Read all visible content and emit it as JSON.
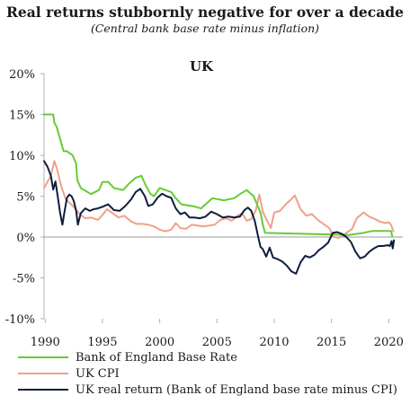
{
  "title": "Real returns stubbornly negative for over a decade",
  "subtitle": "(Central bank base rate minus inflation)",
  "chart_data": {
    "type": "line",
    "panel_title": "UK",
    "x_ticks": [
      "1990",
      "1995",
      "2000",
      "2005",
      "2010",
      "2015",
      "2020"
    ],
    "y_ticks": [
      "20%",
      "15%",
      "10%",
      "5%",
      "0%",
      "-5%",
      "-10%"
    ],
    "xlim": [
      1989.9,
      2020.6
    ],
    "ylim": [
      -10,
      20
    ],
    "grid": false,
    "legend_position": "bottom-left",
    "series": [
      {
        "name": "Bank of England Base Rate",
        "color": "#66cc33",
        "points": [
          [
            1989.9,
            15
          ],
          [
            1990.7,
            15
          ],
          [
            1990.8,
            14
          ],
          [
            1991.0,
            13.5
          ],
          [
            1991.2,
            12.5
          ],
          [
            1991.4,
            11.5
          ],
          [
            1991.6,
            10.5
          ],
          [
            1991.9,
            10.5
          ],
          [
            1992.4,
            10
          ],
          [
            1992.7,
            9
          ],
          [
            1992.8,
            7
          ],
          [
            1993.1,
            6
          ],
          [
            1994.0,
            5.25
          ],
          [
            1994.7,
            5.75
          ],
          [
            1995.0,
            6.75
          ],
          [
            1995.5,
            6.75
          ],
          [
            1996.0,
            6
          ],
          [
            1996.8,
            5.75
          ],
          [
            1997.3,
            6.5
          ],
          [
            1997.9,
            7.25
          ],
          [
            1998.4,
            7.5
          ],
          [
            1998.8,
            6.25
          ],
          [
            1999.2,
            5.25
          ],
          [
            1999.5,
            5
          ],
          [
            2000.0,
            6
          ],
          [
            2001.0,
            5.5
          ],
          [
            2001.4,
            4.75
          ],
          [
            2001.9,
            4
          ],
          [
            2003.0,
            3.75
          ],
          [
            2003.6,
            3.5
          ],
          [
            2004.0,
            4
          ],
          [
            2004.6,
            4.75
          ],
          [
            2005.6,
            4.5
          ],
          [
            2006.5,
            4.75
          ],
          [
            2007.0,
            5.25
          ],
          [
            2007.6,
            5.75
          ],
          [
            2008.2,
            5
          ],
          [
            2008.8,
            3
          ],
          [
            2009.0,
            1.5
          ],
          [
            2009.2,
            0.5
          ],
          [
            2016.5,
            0.25
          ],
          [
            2017.8,
            0.5
          ],
          [
            2018.6,
            0.75
          ],
          [
            2020.2,
            0.75
          ],
          [
            2020.3,
            0.1
          ]
        ]
      },
      {
        "name": "UK CPI",
        "color": "#f0a08a",
        "points": [
          [
            1989.9,
            6
          ],
          [
            1990.5,
            7.5
          ],
          [
            1990.8,
            9.3
          ],
          [
            1991.0,
            8.5
          ],
          [
            1991.4,
            6.2
          ],
          [
            1991.8,
            4.6
          ],
          [
            1992.2,
            4.1
          ],
          [
            1992.6,
            3.5
          ],
          [
            1993.0,
            2.8
          ],
          [
            1993.5,
            2.3
          ],
          [
            1994.0,
            2.4
          ],
          [
            1994.6,
            2.1
          ],
          [
            1995.0,
            2.7
          ],
          [
            1995.4,
            3.4
          ],
          [
            1995.9,
            2.9
          ],
          [
            1996.4,
            2.4
          ],
          [
            1996.9,
            2.6
          ],
          [
            1997.5,
            1.9
          ],
          [
            1998.0,
            1.6
          ],
          [
            1998.5,
            1.6
          ],
          [
            1999.0,
            1.5
          ],
          [
            1999.5,
            1.3
          ],
          [
            2000.0,
            0.9
          ],
          [
            2000.5,
            0.7
          ],
          [
            2001.0,
            0.9
          ],
          [
            2001.4,
            1.7
          ],
          [
            2001.8,
            1.1
          ],
          [
            2002.3,
            1
          ],
          [
            2002.8,
            1.5
          ],
          [
            2003.3,
            1.4
          ],
          [
            2003.8,
            1.3
          ],
          [
            2004.3,
            1.4
          ],
          [
            2004.8,
            1.5
          ],
          [
            2005.3,
            2.1
          ],
          [
            2005.8,
            2.3
          ],
          [
            2006.3,
            2
          ],
          [
            2006.8,
            2.6
          ],
          [
            2007.2,
            2.9
          ],
          [
            2007.6,
            2
          ],
          [
            2008.0,
            2.2
          ],
          [
            2008.4,
            3.3
          ],
          [
            2008.7,
            5.2
          ],
          [
            2009.0,
            3.1
          ],
          [
            2009.4,
            1.9
          ],
          [
            2009.7,
            1.1
          ],
          [
            2010.0,
            3
          ],
          [
            2010.5,
            3.2
          ],
          [
            2011.0,
            4
          ],
          [
            2011.4,
            4.5
          ],
          [
            2011.8,
            5.1
          ],
          [
            2012.3,
            3.4
          ],
          [
            2012.8,
            2.6
          ],
          [
            2013.3,
            2.8
          ],
          [
            2013.8,
            2.1
          ],
          [
            2014.3,
            1.6
          ],
          [
            2014.8,
            1.1
          ],
          [
            2015.2,
            0
          ],
          [
            2015.6,
            -0.1
          ],
          [
            2015.9,
            0.1
          ],
          [
            2016.3,
            0.5
          ],
          [
            2016.8,
            1
          ],
          [
            2017.2,
            2.3
          ],
          [
            2017.8,
            3
          ],
          [
            2018.3,
            2.5
          ],
          [
            2018.8,
            2.2
          ],
          [
            2019.2,
            1.9
          ],
          [
            2019.7,
            1.7
          ],
          [
            2020.0,
            1.8
          ],
          [
            2020.2,
            1.5
          ],
          [
            2020.4,
            0.7
          ]
        ]
      },
      {
        "name": "UK real return (Bank of England base rate minus CPI)",
        "color": "#0d1e3d",
        "points": [
          [
            1989.9,
            9.3
          ],
          [
            1990.2,
            8.6
          ],
          [
            1990.5,
            7.5
          ],
          [
            1990.7,
            5.8
          ],
          [
            1990.9,
            6.8
          ],
          [
            1991.1,
            4.9
          ],
          [
            1991.3,
            3
          ],
          [
            1991.5,
            1.5
          ],
          [
            1991.7,
            3.2
          ],
          [
            1991.9,
            4.8
          ],
          [
            1992.1,
            5.2
          ],
          [
            1992.3,
            5
          ],
          [
            1992.5,
            4.4
          ],
          [
            1992.7,
            3.2
          ],
          [
            1992.85,
            1.5
          ],
          [
            1993.1,
            2.9
          ],
          [
            1993.5,
            3.5
          ],
          [
            1993.9,
            3.2
          ],
          [
            1994.2,
            3.4
          ],
          [
            1994.6,
            3.5
          ],
          [
            1995.0,
            3.7
          ],
          [
            1995.5,
            4
          ],
          [
            1996.0,
            3.3
          ],
          [
            1996.5,
            3.2
          ],
          [
            1997.0,
            3.8
          ],
          [
            1997.5,
            4.6
          ],
          [
            1997.9,
            5.5
          ],
          [
            1998.3,
            5.9
          ],
          [
            1998.7,
            5
          ],
          [
            1999.0,
            3.8
          ],
          [
            1999.4,
            4
          ],
          [
            1999.8,
            4.8
          ],
          [
            2000.2,
            5.3
          ],
          [
            2000.6,
            5
          ],
          [
            2001.0,
            4.8
          ],
          [
            2001.4,
            3.5
          ],
          [
            2001.8,
            2.8
          ],
          [
            2002.2,
            3
          ],
          [
            2002.6,
            2.4
          ],
          [
            2003.0,
            2.4
          ],
          [
            2003.5,
            2.3
          ],
          [
            2004.0,
            2.5
          ],
          [
            2004.5,
            3.1
          ],
          [
            2005.0,
            2.8
          ],
          [
            2005.5,
            2.4
          ],
          [
            2006.0,
            2.5
          ],
          [
            2006.5,
            2.4
          ],
          [
            2007.0,
            2.5
          ],
          [
            2007.4,
            3.3
          ],
          [
            2007.7,
            3.6
          ],
          [
            2008.0,
            3.2
          ],
          [
            2008.3,
            2
          ],
          [
            2008.6,
            0
          ],
          [
            2008.8,
            -1.2
          ],
          [
            2009.0,
            -1.5
          ],
          [
            2009.3,
            -2.4
          ],
          [
            2009.6,
            -1.3
          ],
          [
            2009.9,
            -2.5
          ],
          [
            2010.3,
            -2.7
          ],
          [
            2010.7,
            -3
          ],
          [
            2011.1,
            -3.5
          ],
          [
            2011.5,
            -4.2
          ],
          [
            2011.9,
            -4.5
          ],
          [
            2012.3,
            -3.1
          ],
          [
            2012.7,
            -2.3
          ],
          [
            2013.1,
            -2.5
          ],
          [
            2013.5,
            -2.2
          ],
          [
            2013.9,
            -1.6
          ],
          [
            2014.3,
            -1.2
          ],
          [
            2014.7,
            -0.7
          ],
          [
            2015.1,
            0.5
          ],
          [
            2015.5,
            0.6
          ],
          [
            2015.9,
            0.4
          ],
          [
            2016.3,
            0
          ],
          [
            2016.7,
            -0.6
          ],
          [
            2017.1,
            -1.8
          ],
          [
            2017.5,
            -2.6
          ],
          [
            2017.9,
            -2.4
          ],
          [
            2018.3,
            -1.8
          ],
          [
            2018.7,
            -1.4
          ],
          [
            2019.1,
            -1.1
          ],
          [
            2019.5,
            -1.1
          ],
          [
            2019.9,
            -1
          ],
          [
            2020.1,
            -1.1
          ],
          [
            2020.25,
            -0.5
          ],
          [
            2020.35,
            -1.4
          ],
          [
            2020.45,
            -0.4
          ]
        ]
      }
    ]
  }
}
